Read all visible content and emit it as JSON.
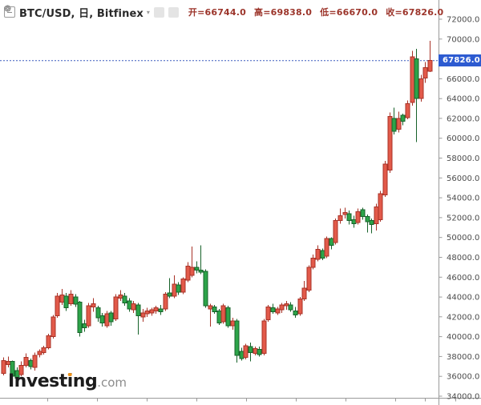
{
  "header": {
    "symbol": "BTC/USD, 日, Bitfinex",
    "ohlc": [
      {
        "text": "开=66744.0"
      },
      {
        "text": "高=69838.0"
      },
      {
        "text": "低=66670.0"
      },
      {
        "text": "收=67826.0"
      }
    ]
  },
  "price_tag": {
    "value": "67826.0"
  },
  "watermark": {
    "p1": "Invest",
    "p2": "i",
    "p3": "ng",
    "suffix": ".com"
  },
  "colors": {
    "up_fill": "#e25a4a",
    "up_stroke": "#a83227",
    "down_fill": "#2ca449",
    "down_stroke": "#17622a",
    "price_line": "#3b5bbf",
    "tag_bg": "#2d5bd1",
    "axis_line": "#9a9a9a",
    "axis_text": "#4c4c4c",
    "ohlc_text": "#9c352b",
    "logo_orange": "#f0951c"
  },
  "chart_data": {
    "type": "candlestick",
    "symbol": "BTC/USD",
    "interval": "日",
    "exchange": "Bitfinex",
    "last": {
      "open": 66744.0,
      "high": 69838.0,
      "low": 66670.0,
      "close": 67826.0
    },
    "color_convention": "red=up, green=down",
    "y_axis": {
      "price_top": 72000,
      "price_bottom": 34000,
      "step": 2000,
      "labels": [
        "72000.0",
        "70000.0",
        "66000.0",
        "64000.0",
        "62000.0",
        "60000.0",
        "58000.0",
        "56000.0",
        "54000.0",
        "52000.0",
        "50000.0",
        "48000.0",
        "46000.0",
        "44000.0",
        "42000.0",
        "40000.0",
        "38000.0",
        "36000.0",
        "34000.0"
      ]
    },
    "x_axis": {
      "labels_visible": false
    },
    "candles": [
      [
        36300,
        37900,
        36100,
        37600
      ],
      [
        37200,
        38000,
        36900,
        37500
      ],
      [
        37500,
        37600,
        35500,
        36000
      ],
      [
        36600,
        36900,
        35400,
        35800
      ],
      [
        36200,
        37500,
        36000,
        37100
      ],
      [
        37100,
        38300,
        36900,
        37900
      ],
      [
        37600,
        37800,
        36700,
        37000
      ],
      [
        36900,
        38400,
        36600,
        38100
      ],
      [
        38200,
        38700,
        37900,
        38500
      ],
      [
        38400,
        39100,
        38200,
        38900
      ],
      [
        38900,
        40300,
        38700,
        40100
      ],
      [
        40000,
        42200,
        39800,
        42000
      ],
      [
        42100,
        44400,
        41900,
        44100
      ],
      [
        43500,
        44800,
        43200,
        44200
      ],
      [
        44100,
        44400,
        42600,
        42900
      ],
      [
        43300,
        44700,
        43100,
        44300
      ],
      [
        44000,
        44300,
        43000,
        43300
      ],
      [
        43500,
        43600,
        40000,
        40400
      ],
      [
        41300,
        41700,
        40500,
        40900
      ],
      [
        41100,
        43400,
        40900,
        43100
      ],
      [
        43000,
        43900,
        42500,
        43300
      ],
      [
        42900,
        43100,
        41500,
        41900
      ],
      [
        42100,
        42400,
        41000,
        41400
      ],
      [
        41100,
        42600,
        40900,
        42300
      ],
      [
        42400,
        42600,
        41100,
        41500
      ],
      [
        41800,
        44300,
        41600,
        44000
      ],
      [
        43900,
        44700,
        43600,
        44200
      ],
      [
        44100,
        44400,
        43100,
        43400
      ],
      [
        43600,
        43900,
        42500,
        42800
      ],
      [
        42700,
        43600,
        42400,
        43300
      ],
      [
        43200,
        43400,
        40200,
        42100
      ],
      [
        42000,
        42800,
        41500,
        42400
      ],
      [
        42300,
        42900,
        42000,
        42600
      ],
      [
        42400,
        42900,
        42100,
        42700
      ],
      [
        42600,
        43100,
        42300,
        42900
      ],
      [
        42800,
        43200,
        42200,
        42500
      ],
      [
        42800,
        44500,
        42600,
        44300
      ],
      [
        44400,
        45900,
        43900,
        44100
      ],
      [
        44100,
        46200,
        43900,
        45300
      ],
      [
        45200,
        45500,
        44200,
        44500
      ],
      [
        44500,
        46000,
        44300,
        45800
      ],
      [
        45700,
        47500,
        45500,
        47100
      ],
      [
        46200,
        49100,
        46000,
        47000
      ],
      [
        47000,
        47600,
        46400,
        46700
      ],
      [
        46700,
        49200,
        46300,
        46500
      ],
      [
        46600,
        46800,
        42900,
        43100
      ],
      [
        42800,
        43300,
        41000,
        43100
      ],
      [
        43000,
        43200,
        42300,
        42500
      ],
      [
        42600,
        42800,
        41200,
        41400
      ],
      [
        41500,
        43300,
        41300,
        43100
      ],
      [
        42900,
        43100,
        40900,
        41100
      ],
      [
        41100,
        41900,
        40700,
        41600
      ],
      [
        41600,
        41800,
        37400,
        38100
      ],
      [
        38500,
        38900,
        37600,
        37800
      ],
      [
        37900,
        39300,
        37700,
        39100
      ],
      [
        39000,
        39400,
        37500,
        38400
      ],
      [
        38300,
        39000,
        38100,
        38800
      ],
      [
        38700,
        39000,
        38000,
        38200
      ],
      [
        38300,
        41800,
        38100,
        41600
      ],
      [
        41700,
        43200,
        41500,
        43000
      ],
      [
        42900,
        43300,
        42300,
        42500
      ],
      [
        42400,
        43000,
        42200,
        42800
      ],
      [
        42700,
        43400,
        42400,
        43200
      ],
      [
        43100,
        43600,
        42700,
        43300
      ],
      [
        43200,
        43500,
        42500,
        42700
      ],
      [
        42600,
        43000,
        41900,
        42200
      ],
      [
        42300,
        44000,
        42100,
        43800
      ],
      [
        43800,
        45600,
        43600,
        44900
      ],
      [
        44700,
        47200,
        44500,
        47000
      ],
      [
        47000,
        48300,
        46800,
        47900
      ],
      [
        47800,
        49200,
        47600,
        48800
      ],
      [
        48700,
        48900,
        47700,
        47900
      ],
      [
        48100,
        50100,
        47900,
        49900
      ],
      [
        49900,
        50000,
        48800,
        49200
      ],
      [
        49500,
        51900,
        49300,
        51700
      ],
      [
        51700,
        52900,
        51400,
        52200
      ],
      [
        52300,
        53000,
        51900,
        52500
      ],
      [
        52400,
        52700,
        51300,
        51700
      ],
      [
        51800,
        52200,
        51000,
        51400
      ],
      [
        51500,
        52900,
        51300,
        52600
      ],
      [
        52800,
        53000,
        51800,
        52100
      ],
      [
        52100,
        52300,
        50500,
        51600
      ],
      [
        51700,
        51900,
        50400,
        51300
      ],
      [
        51400,
        53400,
        50700,
        53100
      ],
      [
        51800,
        54700,
        51600,
        54400
      ],
      [
        54300,
        57700,
        54100,
        57400
      ],
      [
        56800,
        62600,
        56500,
        62200
      ],
      [
        62000,
        63100,
        60400,
        60700
      ],
      [
        60900,
        62700,
        60600,
        62000
      ],
      [
        62300,
        62500,
        61300,
        61700
      ],
      [
        62100,
        63800,
        61900,
        63500
      ],
      [
        63600,
        68800,
        63300,
        68200
      ],
      [
        68000,
        69000,
        59600,
        64000
      ],
      [
        64000,
        66400,
        63700,
        66000
      ],
      [
        66050,
        67700,
        65600,
        67100
      ],
      [
        66744,
        69838,
        66670,
        67826
      ]
    ]
  }
}
